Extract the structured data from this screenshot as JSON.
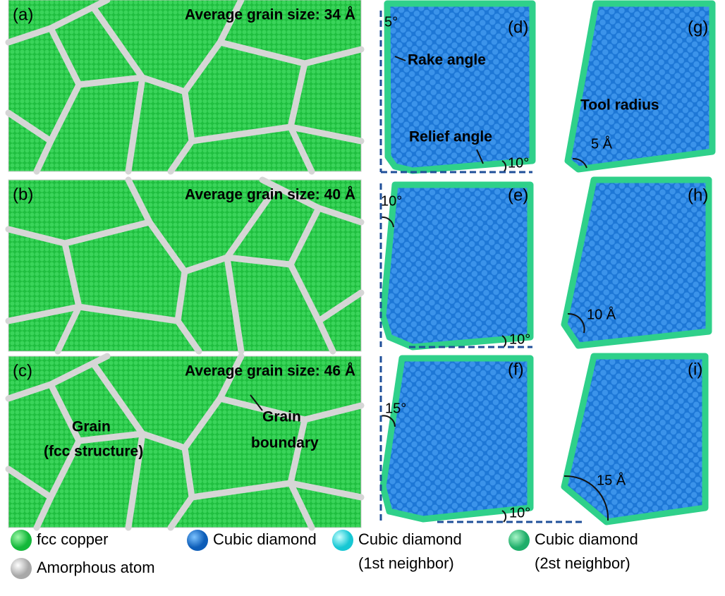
{
  "copper_panels": [
    {
      "label": "(a)",
      "caption": "Average grain size: 34 Å"
    },
    {
      "label": "(b)",
      "caption": "Average grain size: 40 Å"
    },
    {
      "label": "(c)",
      "caption": "Average grain size: 46 Å"
    }
  ],
  "tool_panels": [
    {
      "label": "(d)"
    },
    {
      "label": "(e)"
    },
    {
      "label": "(f)"
    },
    {
      "label": "(g)"
    },
    {
      "label": "(h)"
    },
    {
      "label": "(i)"
    }
  ],
  "annotations": [
    "5°",
    "Rake angle",
    "Relief angle",
    "10°",
    "10°",
    "10°",
    "10°",
    "15°",
    "10°",
    "Tool radius",
    "5 Å",
    "10 Å",
    "15 Å",
    "Grain",
    "(fcc structure)",
    "Grain",
    "boundary"
  ],
  "legend": [
    {
      "text": "fcc copper"
    },
    {
      "text": "Cubic diamond"
    },
    {
      "text": "Cubic diamond",
      "sub": "(1st neighbor)"
    },
    {
      "text": "Cubic diamond",
      "sub": "(2st neighbor)"
    },
    {
      "text": "Amorphous atom"
    }
  ]
}
